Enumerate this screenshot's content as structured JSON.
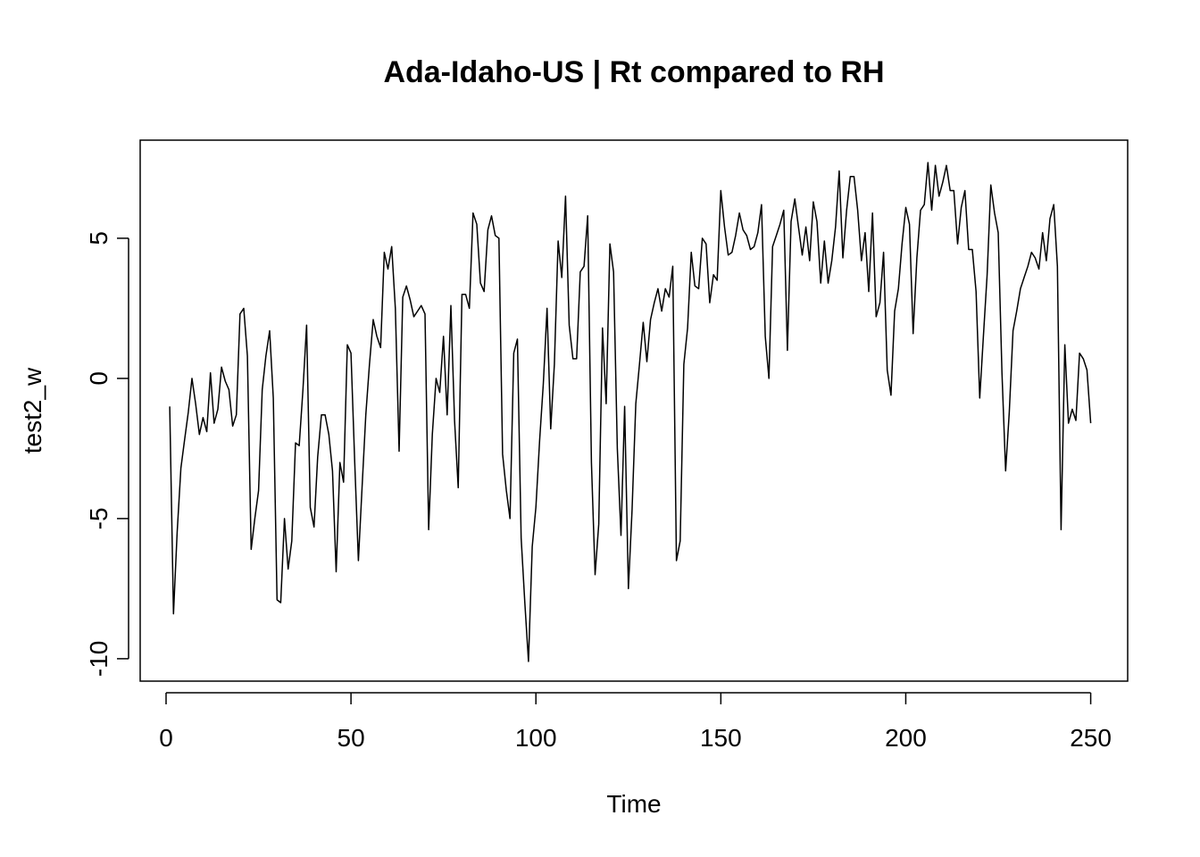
{
  "chart_data": {
    "type": "line",
    "title": "Ada-Idaho-US | Rt compared to RH",
    "xlabel": "Time",
    "ylabel": "test2_w",
    "xlim": [
      -7,
      260
    ],
    "ylim": [
      -10.8,
      8.5
    ],
    "xticks": [
      0,
      50,
      100,
      150,
      200,
      250
    ],
    "yticks": [
      -10,
      -5,
      0,
      5
    ],
    "xtick_labels": [
      "0",
      "50",
      "100",
      "150",
      "200",
      "250"
    ],
    "ytick_labels": [
      "-10",
      "-5",
      "0",
      "5"
    ],
    "grid": false,
    "legend": "none",
    "series": [
      {
        "color": "#000000",
        "x_start": 1,
        "values": [
          -1.0,
          -8.4,
          -5.5,
          -3.2,
          -2.2,
          -1.2,
          0.0,
          -0.9,
          -2.0,
          -1.4,
          -1.9,
          0.2,
          -1.6,
          -1.1,
          0.4,
          -0.1,
          -0.4,
          -1.7,
          -1.3,
          2.3,
          2.5,
          0.8,
          -6.1,
          -5.0,
          -4.0,
          -0.4,
          0.8,
          1.7,
          -0.7,
          -7.9,
          -8.0,
          -5.0,
          -6.8,
          -5.8,
          -2.3,
          -2.4,
          -0.4,
          1.9,
          -4.6,
          -5.3,
          -2.8,
          -1.3,
          -1.3,
          -2.0,
          -3.3,
          -6.9,
          -3.0,
          -3.7,
          1.2,
          0.9,
          -3.0,
          -6.5,
          -3.9,
          -1.3,
          0.5,
          2.1,
          1.5,
          1.1,
          4.5,
          3.9,
          4.7,
          2.5,
          -2.6,
          2.9,
          3.3,
          2.8,
          2.2,
          2.4,
          2.6,
          2.3,
          -5.4,
          -2.0,
          0.0,
          -0.5,
          1.5,
          -1.3,
          2.6,
          -1.5,
          -3.9,
          3.0,
          3.0,
          2.5,
          5.9,
          5.5,
          3.4,
          3.1,
          5.3,
          5.8,
          5.1,
          5.0,
          -2.7,
          -4.0,
          -5.0,
          0.9,
          1.4,
          -5.7,
          -8.0,
          -10.1,
          -6.0,
          -4.6,
          -2.2,
          -0.2,
          2.5,
          -1.8,
          0.5,
          4.9,
          3.6,
          6.5,
          1.9,
          0.7,
          0.7,
          3.8,
          4.0,
          5.8,
          -3.0,
          -7.0,
          -5.2,
          1.8,
          -0.9,
          4.8,
          3.8,
          -2.5,
          -5.6,
          -1.0,
          -7.5,
          -4.7,
          -0.9,
          0.5,
          2.0,
          0.6,
          2.1,
          2.7,
          3.2,
          2.4,
          3.2,
          2.9,
          4.0,
          -6.5,
          -5.8,
          0.5,
          1.8,
          4.5,
          3.3,
          3.2,
          5.0,
          4.8,
          2.7,
          3.7,
          3.5,
          6.7,
          5.4,
          4.4,
          4.5,
          5.1,
          5.9,
          5.3,
          5.1,
          4.6,
          4.7,
          5.2,
          6.2,
          1.5,
          0.0,
          4.7,
          5.1,
          5.5,
          6.0,
          1.0,
          5.6,
          6.4,
          5.4,
          4.4,
          5.4,
          4.2,
          6.3,
          5.6,
          3.4,
          4.9,
          3.4,
          4.2,
          5.4,
          7.4,
          4.3,
          6.0,
          7.2,
          7.2,
          6.0,
          4.2,
          5.2,
          3.1,
          5.9,
          2.2,
          2.7,
          4.5,
          0.3,
          -0.6,
          2.4,
          3.2,
          4.8,
          6.1,
          5.5,
          1.6,
          4.3,
          6.0,
          6.2,
          7.7,
          6.0,
          7.6,
          6.5,
          7.0,
          7.6,
          6.7,
          6.7,
          4.8,
          6.1,
          6.7,
          4.6,
          4.6,
          3.1,
          -0.7,
          1.5,
          3.7,
          6.9,
          5.9,
          5.2,
          0.2,
          -3.3,
          -1.2,
          1.7,
          2.4,
          3.2,
          3.6,
          4.0,
          4.5,
          4.3,
          3.9,
          5.2,
          4.2,
          5.7,
          6.2,
          4.0,
          -5.4,
          1.2,
          -1.6,
          -1.1,
          -1.5,
          0.9,
          0.7,
          0.3,
          -1.6
        ]
      }
    ]
  }
}
